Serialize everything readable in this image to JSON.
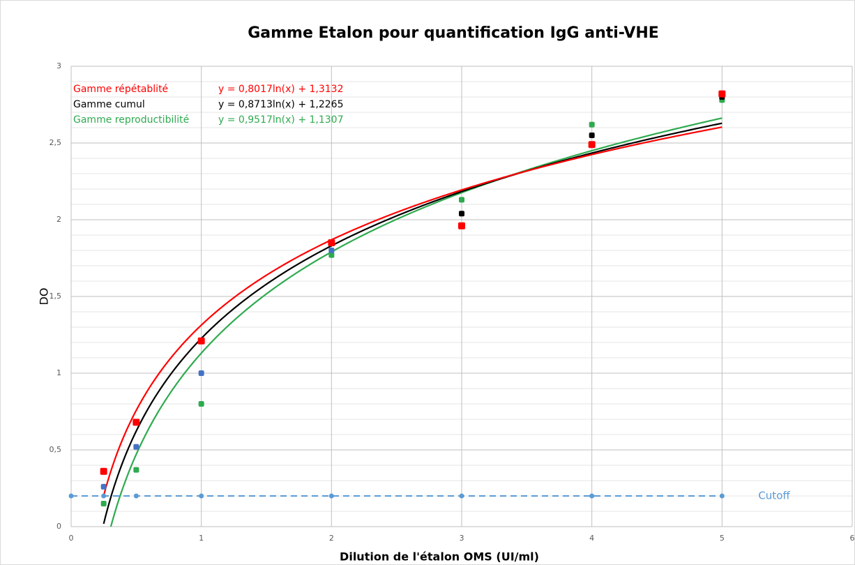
{
  "chart_data": {
    "type": "scatter",
    "title": "Gamme Etalon pour quantification IgG anti-VHE",
    "x_label": "Dilution de l'étalon OMS (UI/ml)",
    "y_label": "DO",
    "xlim": [
      0,
      6
    ],
    "xticks": [
      0,
      1,
      2,
      3,
      4,
      5,
      6
    ],
    "ylim": [
      0,
      3
    ],
    "yticks": [
      0,
      {
        "value": 0.5,
        "label": "0,5"
      },
      1,
      {
        "value": 1.5,
        "label": "1,5"
      },
      2,
      {
        "value": 2.5,
        "label": "2,5"
      },
      3
    ],
    "grid": true,
    "minor_grid": true,
    "series": [
      {
        "name": "Cutoff",
        "color": "#5b9bd5",
        "dashed": true,
        "x": [
          0,
          0.25,
          0.5,
          1,
          2,
          3,
          4,
          5
        ],
        "values": [
          0.2,
          0.2,
          0.2,
          0.2,
          0.2,
          0.2,
          0.2,
          0.2
        ]
      },
      {
        "name": "Gamme reproductibilité",
        "color": "#2eaa4f",
        "x": [
          0.25,
          0.5,
          1,
          2,
          3,
          4,
          5
        ],
        "values": [
          0.15,
          0.37,
          0.8,
          1.77,
          2.13,
          2.62,
          2.78
        ],
        "trendline": {
          "label": "y = 0,9517ln(x) + 1,1307",
          "a": 0.9517,
          "b": 1.1307
        }
      },
      {
        "name": "Gamme cumul",
        "color": "#000000",
        "point_colors": [
          "#4472c4",
          "#4472c4",
          "#4472c4",
          "#4472c4",
          "#000000",
          "#000000",
          "#000000"
        ],
        "x": [
          0.25,
          0.5,
          1,
          2,
          3,
          4,
          5
        ],
        "values": [
          0.26,
          0.52,
          1.0,
          1.8,
          2.04,
          2.55,
          2.8
        ],
        "trendline": {
          "label": "y = 0,8713ln(x) + 1,2265",
          "a": 0.8713,
          "b": 1.2265
        }
      },
      {
        "name": "Gamme répétablité",
        "color": "#ff0000",
        "x": [
          0.25,
          0.5,
          1,
          2,
          3,
          4,
          5
        ],
        "values": [
          0.36,
          0.68,
          1.21,
          1.85,
          1.96,
          2.49,
          2.82
        ],
        "trendline": {
          "label": "y = 0,8017ln(x) + 1,3132",
          "a": 0.8017,
          "b": 1.3132
        }
      }
    ]
  }
}
